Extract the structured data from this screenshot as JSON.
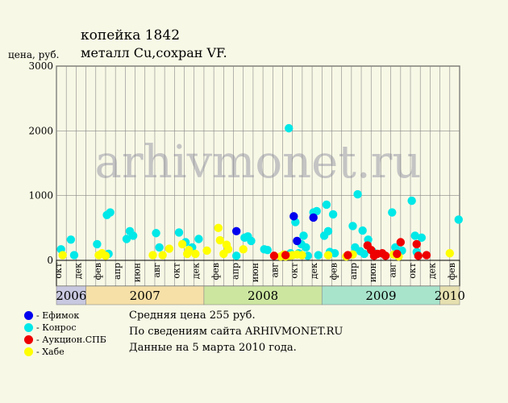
{
  "header": {
    "title": "копейка 1842",
    "subtitle": "металл Cu,сохран VF.",
    "ylabel": "цена, руб."
  },
  "watermark": "arhivmonet.ru",
  "info": {
    "line1": "Средняя цена 255 руб.",
    "line2": "По сведениям сайта ARHIVMONET.RU",
    "line3": "Данные на 5 марта 2010 года."
  },
  "colors": {
    "Ефимок": "#0000ee",
    "Конрос": "#00e8e8",
    "Аукцион.СПБ": "#ee0000",
    "Хабе": "#ffff00"
  },
  "legend": [
    {
      "name": "Ефимок",
      "label": "- Ефимок"
    },
    {
      "name": "Конрос",
      "label": "- Конрос"
    },
    {
      "name": "Аукцион.СПБ",
      "label": "- Аукцион.СПБ"
    },
    {
      "name": "Хабе",
      "label": "- Хабе"
    }
  ],
  "chart_data": {
    "type": "scatter",
    "title": "копейка 1842",
    "subtitle": "металл Cu,сохран VF.",
    "ylabel": "цена, руб.",
    "ylim": [
      0,
      3000
    ],
    "yticks": [
      0,
      1000,
      2000,
      3000
    ],
    "xlim": [
      "2006-10",
      "2010-03"
    ],
    "month_ticks": [
      {
        "label": "окт",
        "date": "2006-10"
      },
      {
        "label": "дек",
        "date": "2006-12"
      },
      {
        "label": "фев",
        "date": "2007-02"
      },
      {
        "label": "апр",
        "date": "2007-04"
      },
      {
        "label": "июн",
        "date": "2007-06"
      },
      {
        "label": "авг",
        "date": "2007-08"
      },
      {
        "label": "окт",
        "date": "2007-10"
      },
      {
        "label": "дек",
        "date": "2007-12"
      },
      {
        "label": "фев",
        "date": "2008-02"
      },
      {
        "label": "апр",
        "date": "2008-04"
      },
      {
        "label": "июн",
        "date": "2008-06"
      },
      {
        "label": "авг",
        "date": "2008-08"
      },
      {
        "label": "окт",
        "date": "2008-10"
      },
      {
        "label": "дек",
        "date": "2008-12"
      },
      {
        "label": "фев",
        "date": "2009-02"
      },
      {
        "label": "апр",
        "date": "2009-04"
      },
      {
        "label": "июн",
        "date": "2009-06"
      },
      {
        "label": "авг",
        "date": "2009-08"
      },
      {
        "label": "окт",
        "date": "2009-10"
      },
      {
        "label": "дек",
        "date": "2009-12"
      },
      {
        "label": "фев",
        "date": "2010-02"
      }
    ],
    "year_bands": [
      {
        "label": "2006",
        "from": "2006-10",
        "to": "2007-01",
        "color": "#c8c8e0"
      },
      {
        "label": "2007",
        "from": "2007-01",
        "to": "2008-01",
        "color": "#f6e0a8"
      },
      {
        "label": "2008",
        "from": "2008-01",
        "to": "2009-01",
        "color": "#cce6a0"
      },
      {
        "label": "2009",
        "from": "2009-01",
        "to": "2010-01",
        "color": "#a8e4cc"
      },
      {
        "label": "2010",
        "from": "2010-01",
        "to": "2010-03",
        "color": "#e6e0b0"
      }
    ],
    "series": [
      {
        "name": "Конрос",
        "points": [
          {
            "x": "2006-10-15",
            "y": 170
          },
          {
            "x": "2006-11-15",
            "y": 320
          },
          {
            "x": "2006-11-25",
            "y": 80
          },
          {
            "x": "2007-02-05",
            "y": 250
          },
          {
            "x": "2007-03-05",
            "y": 700
          },
          {
            "x": "2007-03-15",
            "y": 740
          },
          {
            "x": "2007-03-10",
            "y": 100
          },
          {
            "x": "2007-05-05",
            "y": 330
          },
          {
            "x": "2007-05-15",
            "y": 450
          },
          {
            "x": "2007-05-25",
            "y": 380
          },
          {
            "x": "2007-08-05",
            "y": 420
          },
          {
            "x": "2007-08-15",
            "y": 200
          },
          {
            "x": "2007-10-15",
            "y": 430
          },
          {
            "x": "2007-11-05",
            "y": 280
          },
          {
            "x": "2007-11-25",
            "y": 200
          },
          {
            "x": "2007-12-15",
            "y": 330
          },
          {
            "x": "2008-04-10",
            "y": 70
          },
          {
            "x": "2008-05-05",
            "y": 350
          },
          {
            "x": "2008-05-15",
            "y": 370
          },
          {
            "x": "2008-05-25",
            "y": 300
          },
          {
            "x": "2008-07-05",
            "y": 170
          },
          {
            "x": "2008-07-15",
            "y": 160
          },
          {
            "x": "2008-09-20",
            "y": 2040
          },
          {
            "x": "2008-09-25",
            "y": 110
          },
          {
            "x": "2008-10-10",
            "y": 590
          },
          {
            "x": "2008-10-20",
            "y": 110
          },
          {
            "x": "2008-10-28",
            "y": 250
          },
          {
            "x": "2008-11-05",
            "y": 380
          },
          {
            "x": "2008-11-12",
            "y": 200
          },
          {
            "x": "2008-11-18",
            "y": 70
          },
          {
            "x": "2008-12-05",
            "y": 740
          },
          {
            "x": "2008-12-15",
            "y": 760
          },
          {
            "x": "2008-12-20",
            "y": 80
          },
          {
            "x": "2009-01-08",
            "y": 380
          },
          {
            "x": "2009-01-15",
            "y": 860
          },
          {
            "x": "2009-01-20",
            "y": 450
          },
          {
            "x": "2009-01-25",
            "y": 130
          },
          {
            "x": "2009-02-05",
            "y": 710
          },
          {
            "x": "2009-02-10",
            "y": 110
          },
          {
            "x": "2009-04-05",
            "y": 530
          },
          {
            "x": "2009-04-12",
            "y": 200
          },
          {
            "x": "2009-04-20",
            "y": 1020
          },
          {
            "x": "2009-04-28",
            "y": 140
          },
          {
            "x": "2009-05-05",
            "y": 460
          },
          {
            "x": "2009-05-10",
            "y": 100
          },
          {
            "x": "2009-05-22",
            "y": 320
          },
          {
            "x": "2009-06-05",
            "y": 140
          },
          {
            "x": "2009-08-05",
            "y": 740
          },
          {
            "x": "2009-08-15",
            "y": 200
          },
          {
            "x": "2009-09-05",
            "y": 150
          },
          {
            "x": "2009-10-05",
            "y": 920
          },
          {
            "x": "2009-10-15",
            "y": 380
          },
          {
            "x": "2009-10-20",
            "y": 130
          },
          {
            "x": "2009-11-05",
            "y": 350
          },
          {
            "x": "2010-02-28",
            "y": 630
          }
        ]
      },
      {
        "name": "Хабе",
        "points": [
          {
            "x": "2006-10-20",
            "y": 80
          },
          {
            "x": "2007-02-10",
            "y": 80
          },
          {
            "x": "2007-02-20",
            "y": 110
          },
          {
            "x": "2007-03-01",
            "y": 70
          },
          {
            "x": "2007-07-25",
            "y": 80
          },
          {
            "x": "2007-08-25",
            "y": 80
          },
          {
            "x": "2007-09-15",
            "y": 180
          },
          {
            "x": "2007-10-25",
            "y": 250
          },
          {
            "x": "2007-11-10",
            "y": 100
          },
          {
            "x": "2007-11-15",
            "y": 160
          },
          {
            "x": "2007-12-05",
            "y": 100
          },
          {
            "x": "2008-01-10",
            "y": 150
          },
          {
            "x": "2008-02-15",
            "y": 500
          },
          {
            "x": "2008-02-20",
            "y": 310
          },
          {
            "x": "2008-03-01",
            "y": 100
          },
          {
            "x": "2008-03-10",
            "y": 240
          },
          {
            "x": "2008-03-15",
            "y": 170
          },
          {
            "x": "2008-05-01",
            "y": 170
          },
          {
            "x": "2008-08-25",
            "y": 60
          },
          {
            "x": "2008-09-05",
            "y": 90
          },
          {
            "x": "2008-09-10",
            "y": 60
          },
          {
            "x": "2008-09-22",
            "y": 70
          },
          {
            "x": "2008-10-01",
            "y": 80
          },
          {
            "x": "2008-10-15",
            "y": 90
          },
          {
            "x": "2008-10-30",
            "y": 80
          },
          {
            "x": "2009-01-20",
            "y": 80
          },
          {
            "x": "2009-03-15",
            "y": 60
          },
          {
            "x": "2009-04-05",
            "y": 90
          },
          {
            "x": "2009-08-10",
            "y": 90
          },
          {
            "x": "2009-08-25",
            "y": 60
          },
          {
            "x": "2010-02-01",
            "y": 110
          }
        ]
      },
      {
        "name": "Аукцион.СПБ",
        "points": [
          {
            "x": "2008-08-05",
            "y": 70
          },
          {
            "x": "2008-09-10",
            "y": 80
          },
          {
            "x": "2009-03-20",
            "y": 80
          },
          {
            "x": "2009-05-20",
            "y": 230
          },
          {
            "x": "2009-06-01",
            "y": 160
          },
          {
            "x": "2009-06-10",
            "y": 70
          },
          {
            "x": "2009-06-20",
            "y": 100
          },
          {
            "x": "2009-07-05",
            "y": 110
          },
          {
            "x": "2009-07-15",
            "y": 70
          },
          {
            "x": "2009-08-20",
            "y": 100
          },
          {
            "x": "2009-09-01",
            "y": 280
          },
          {
            "x": "2009-10-20",
            "y": 250
          },
          {
            "x": "2009-10-25",
            "y": 70
          },
          {
            "x": "2009-11-20",
            "y": 80
          }
        ]
      },
      {
        "name": "Ефимок",
        "points": [
          {
            "x": "2008-04-10",
            "y": 450
          },
          {
            "x": "2008-10-05",
            "y": 680
          },
          {
            "x": "2008-10-15",
            "y": 300
          },
          {
            "x": "2008-12-05",
            "y": 660
          }
        ]
      }
    ]
  }
}
